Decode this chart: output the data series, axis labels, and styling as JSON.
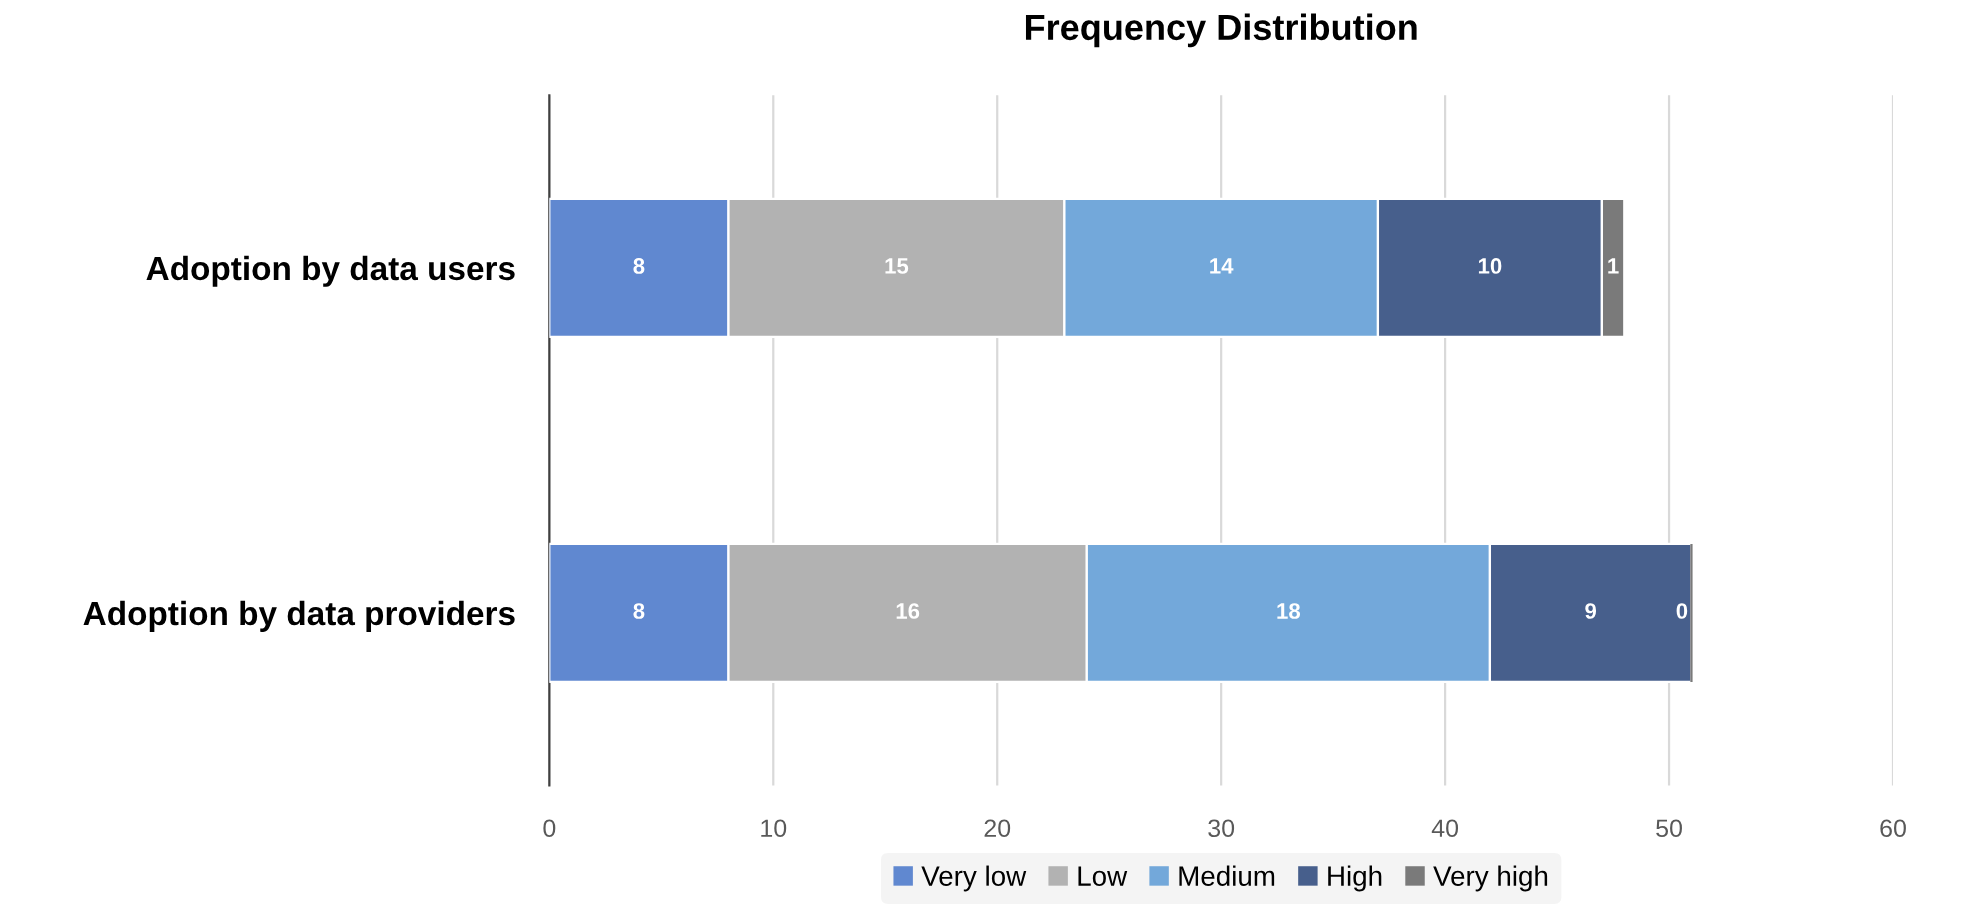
{
  "chart_data": {
    "type": "bar",
    "orientation": "horizontal",
    "stacked": true,
    "title": "Frequency Distribution",
    "categories": [
      "Adoption by data users",
      "Adoption by data providers"
    ],
    "series": [
      {
        "name": "Very low",
        "color": "#6088d0",
        "values": [
          8,
          8
        ]
      },
      {
        "name": "Low",
        "color": "#b2b2b2",
        "values": [
          15,
          16
        ]
      },
      {
        "name": "Medium",
        "color": "#73a8da",
        "values": [
          14,
          18
        ]
      },
      {
        "name": "High",
        "color": "#475f8c",
        "values": [
          10,
          9
        ]
      },
      {
        "name": "Very high",
        "color": "#7a7a7a",
        "values": [
          1,
          0
        ]
      }
    ],
    "xlim": [
      0,
      60
    ],
    "xticks": [
      0,
      10,
      20,
      30,
      40,
      50,
      60
    ],
    "grid": "x",
    "legend": "bottom",
    "data_labels": true
  }
}
